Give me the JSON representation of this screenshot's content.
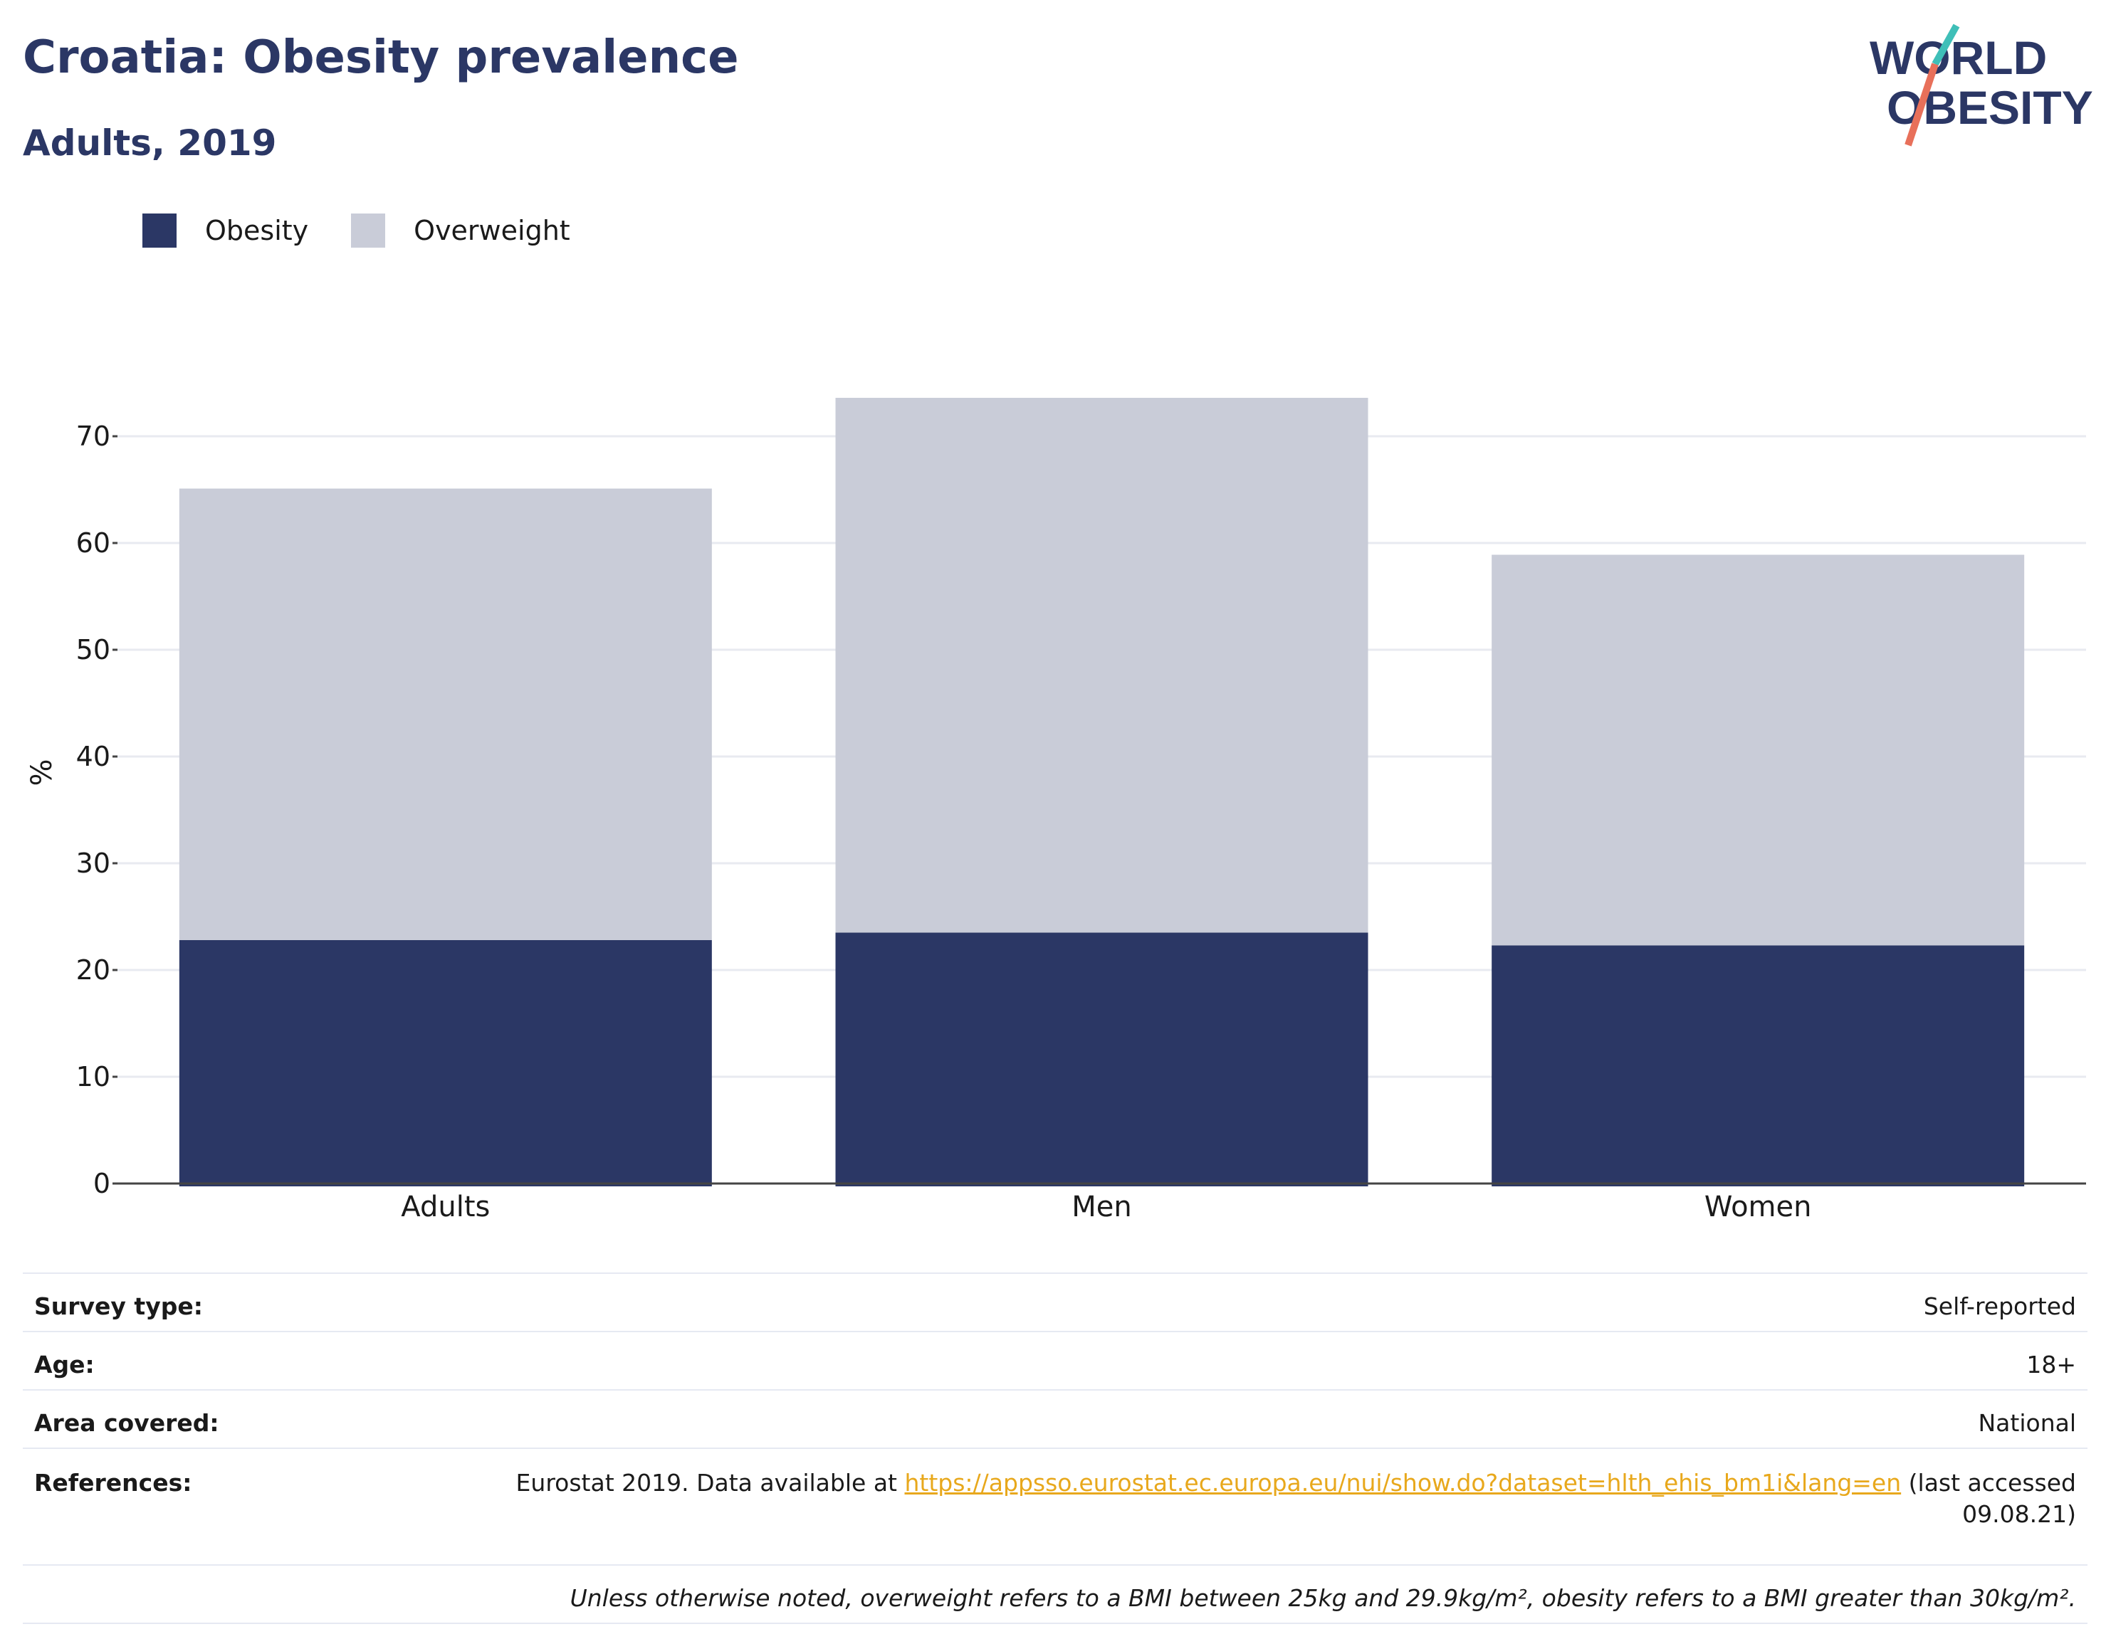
{
  "header": {
    "title": "Croatia: Obesity prevalence",
    "subtitle": "Adults, 2019"
  },
  "logo": {
    "line1": "WORLD",
    "line2": "OBESITY",
    "slash_top_color": "#3fbfb8",
    "slash_bottom_color": "#e8705a"
  },
  "legend": {
    "items": [
      {
        "label": "Obesity",
        "color": "#2b3765"
      },
      {
        "label": "Overweight",
        "color": "#c9ccd8"
      }
    ]
  },
  "chart_data": {
    "type": "bar",
    "stacked": true,
    "categories": [
      "Adults",
      "Men",
      "Women"
    ],
    "series": [
      {
        "name": "Obesity",
        "values": [
          22.8,
          23.5,
          22.3
        ],
        "color": "#2b3765"
      },
      {
        "name": "Overweight",
        "values": [
          42.3,
          50.1,
          36.6
        ],
        "color": "#c9ccd8"
      }
    ],
    "ylabel": "%",
    "ylim": [
      0,
      77
    ],
    "yticks": [
      0,
      10,
      20,
      30,
      40,
      50,
      60,
      70
    ],
    "grid": true,
    "legend_position": "top-left"
  },
  "info": {
    "survey_type_label": "Survey type:",
    "survey_type_value": "Self-reported",
    "age_label": "Age:",
    "age_value": "18+",
    "area_label": "Area covered:",
    "area_value": "National",
    "references_label": "References:",
    "references_prefix": "Eurostat 2019. Data available at",
    "references_link": "https://appsso.eurostat.ec.europa.eu/nui/show.do?dataset=hlth_ehis_bm1i&lang=en",
    "references_suffix": "(last accessed",
    "references_suffix2": "09.08.21)",
    "footnote": "Unless otherwise noted, overweight refers to a BMI between 25kg and 29.9kg/m², obesity refers to a BMI greater than 30kg/m²."
  }
}
